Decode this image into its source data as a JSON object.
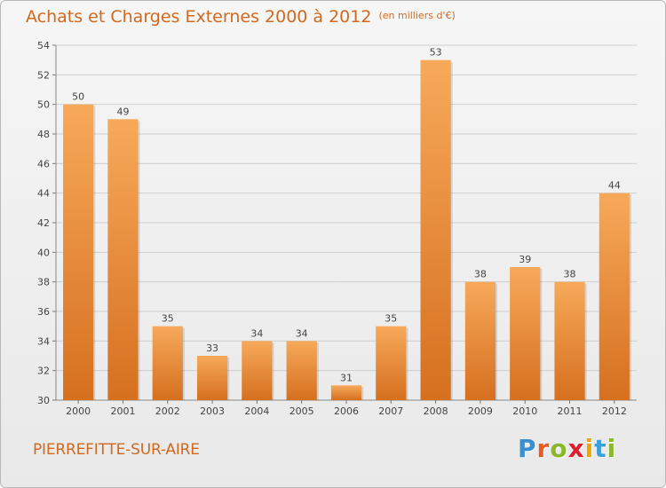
{
  "header": {
    "title": "Achats et Charges Externes 2000 à 2012",
    "unit": "(en milliers d'€)"
  },
  "footer": {
    "place": "PIERREFITTE-SUR-AIRE",
    "brand_letters": [
      "P",
      "r",
      "o",
      "x",
      "i",
      "t",
      "i"
    ],
    "brand_colors": [
      "#3a8fd1",
      "#e95b1e",
      "#8ab82a",
      "#e11d2c",
      "#f0a500",
      "#3aa0d8",
      "#8ab82a"
    ]
  },
  "colors": {
    "title": "#d2691e",
    "bar_top": "#f7a95a",
    "bar_bottom": "#d5701f",
    "grid": "#cfcfcf"
  },
  "chart_data": {
    "type": "bar",
    "categories": [
      "2000",
      "2001",
      "2002",
      "2003",
      "2004",
      "2005",
      "2006",
      "2007",
      "2008",
      "2009",
      "2010",
      "2011",
      "2012"
    ],
    "values": [
      50,
      49,
      35,
      33,
      34,
      34,
      31,
      35,
      53,
      38,
      39,
      38,
      44
    ],
    "ylim": [
      30,
      54
    ],
    "yticks": [
      30,
      32,
      34,
      36,
      38,
      40,
      42,
      44,
      46,
      48,
      50,
      52,
      54
    ],
    "grid": true,
    "data_labels": true,
    "xlabel": "",
    "ylabel": ""
  }
}
